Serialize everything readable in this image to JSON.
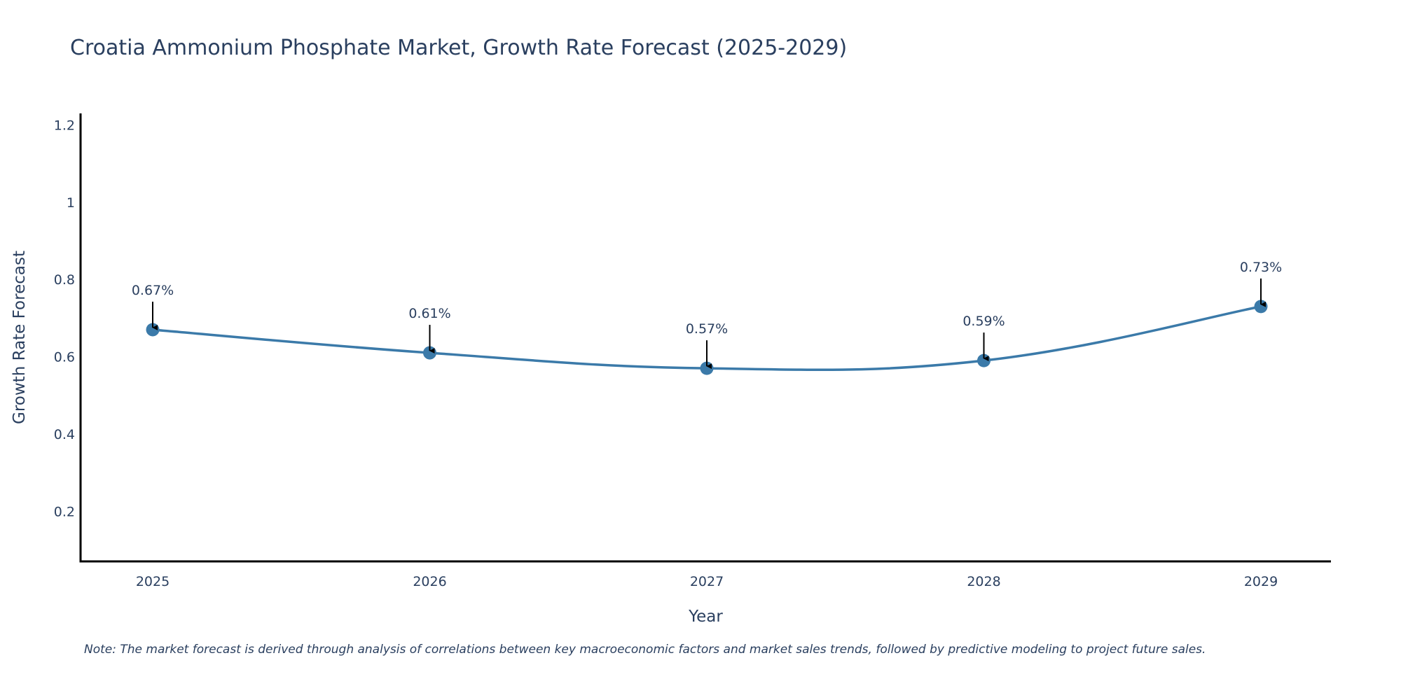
{
  "chart_data": {
    "type": "line",
    "title": "Croatia Ammonium Phosphate Market, Growth Rate Forecast (2025-2029)",
    "xlabel": "Year",
    "ylabel": "Growth Rate Forecast",
    "categories": [
      "2025",
      "2026",
      "2027",
      "2028",
      "2029"
    ],
    "series": [
      {
        "name": "Growth Rate Forecast",
        "values": [
          0.67,
          0.61,
          0.57,
          0.59,
          0.73
        ],
        "labels": [
          "0.67%",
          "0.61%",
          "0.57%",
          "0.59%",
          "0.73%"
        ],
        "color": "#3b7aa9"
      }
    ],
    "ylim": [
      0.07,
      1.23
    ],
    "yticks": [
      0.2,
      0.4,
      0.6,
      0.8,
      1,
      1.2
    ],
    "ytick_labels": [
      "0.2",
      "0.4",
      "0.6",
      "0.8",
      "1",
      "1.2"
    ],
    "grid": false,
    "line_shape": "spline"
  },
  "note": "Note: The market forecast is derived through analysis of correlations between key macroeconomic factors and market sales trends, followed by predictive modeling to project future sales."
}
